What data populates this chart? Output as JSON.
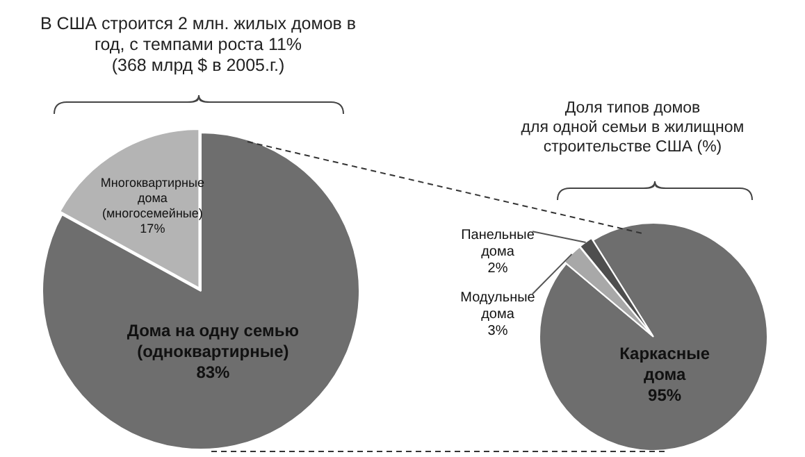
{
  "chart_data": [
    {
      "type": "pie",
      "title": "В США строится 2 млн. жилых домов в\nгод, с темпами роста 11%\n(368 млрд $ в 2005.г.)",
      "categories": [
        "Дома на одну семью (одноквартирные)",
        "Многоквартирные дома (многосемейные)"
      ],
      "values": [
        83,
        17
      ],
      "colors": [
        "#6e6e6e",
        "#b4b4b4"
      ],
      "value_labels": [
        "83%",
        "17%"
      ]
    },
    {
      "type": "pie",
      "title": "Доля типов домов\nдля одной семьи в жилищном\nстроительстве США (%)",
      "categories": [
        "Каркасные дома",
        "Модульные дома",
        "Панельные дома"
      ],
      "values": [
        95,
        3,
        2
      ],
      "colors": [
        "#6e6e6e",
        "#a8a8a8",
        "#4e4e4e"
      ],
      "value_labels": [
        "95%",
        "3%",
        "2%"
      ]
    }
  ]
}
